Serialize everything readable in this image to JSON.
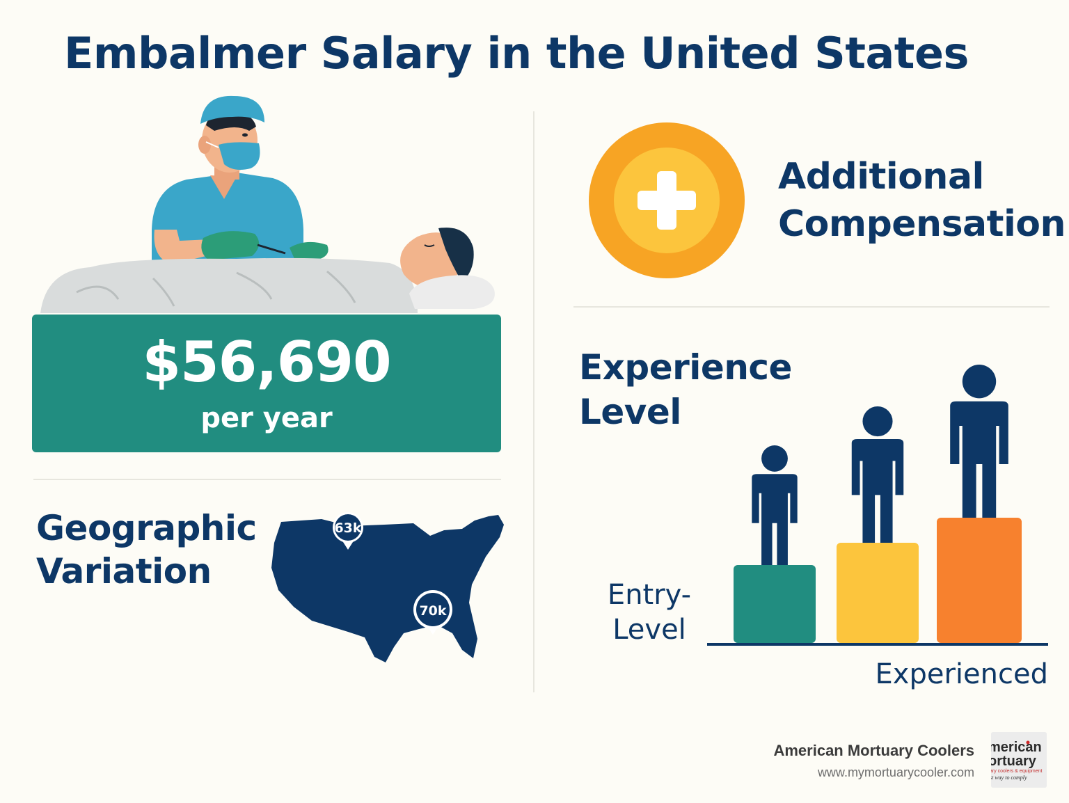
{
  "title": "Embalmer Salary in the United States",
  "salary": {
    "amount": "$56,690",
    "period": "per year"
  },
  "geographic": {
    "title": "Geographic Variation",
    "pins": [
      {
        "label": "63k"
      },
      {
        "label": "70k"
      }
    ]
  },
  "additional_compensation": {
    "title": "Additional Compensation"
  },
  "experience": {
    "title": "Experience Level",
    "entry_label": "Entry-Level",
    "experienced_label": "Experienced",
    "levels": [
      {
        "value": 1,
        "color": "#218d80"
      },
      {
        "value": 2,
        "color": "#fcc53d"
      },
      {
        "value": 3,
        "color": "#f7812e"
      }
    ]
  },
  "footer": {
    "company": "American Mortuary Coolers",
    "url": "www.mymortuarycooler.com",
    "logo_text": [
      "merican",
      "ortuary",
      "ary coolers & equipment",
      "st way to comply"
    ]
  },
  "colors": {
    "navy": "#0d3766",
    "teal": "#218d80",
    "yellow": "#fcc53d",
    "orange": "#f7812e",
    "scrubs": "#3aa6c9",
    "background": "#fdfcf6"
  }
}
